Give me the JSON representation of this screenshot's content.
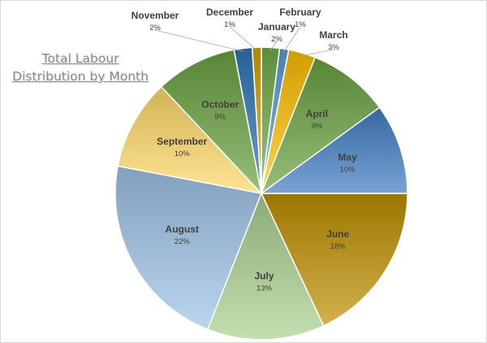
{
  "chart_data": {
    "type": "pie",
    "title": "Total Labour Distribution by Month",
    "title_lines": [
      "Total Labour",
      "Distribution by Month"
    ],
    "categories": [
      "January",
      "February",
      "March",
      "April",
      "May",
      "June",
      "July",
      "August",
      "September",
      "October",
      "November",
      "December"
    ],
    "values": [
      2,
      1,
      3,
      9,
      10,
      18,
      13,
      22,
      10,
      9,
      2,
      1
    ],
    "labels": [
      "2%",
      "1%",
      "3%",
      "9%",
      "10%",
      "18%",
      "13%",
      "22%",
      "10%",
      "9%",
      "2%",
      "1%"
    ],
    "colors": {
      "January": "#70ad47",
      "February": "#5b9bd5",
      "March": "#ffc000",
      "April": "#6aa241",
      "May": "#3f7dc3",
      "June": "#bf9000",
      "July": "#a9d18e",
      "August": "#9dc3e6",
      "September": "#ffd966",
      "October": "#6aa241",
      "November": "#2e75b6",
      "December": "#d9a400"
    },
    "legend": "none",
    "grid": false
  }
}
